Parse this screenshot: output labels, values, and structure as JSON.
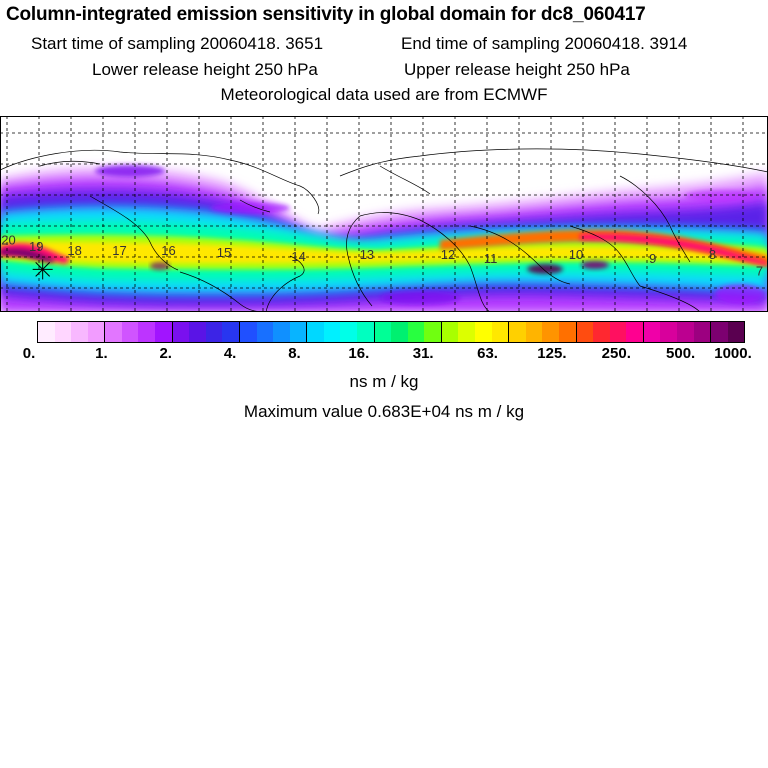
{
  "header": {
    "title": "Column-integrated emission sensitivity in global domain for dc8_060417",
    "start_label": "Start time of sampling 20060418.  3651",
    "end_label": "End time of sampling 20060418.  3914",
    "lower_label": "Lower release height  250 hPa",
    "upper_label": "Upper release height  250 hPa",
    "met_label": "Meteorological data used are from ECMWF"
  },
  "map": {
    "day_labels": [
      {
        "text": "20",
        "lon": -176,
        "lat": 21
      },
      {
        "text": "19",
        "lon": -163,
        "lat": 18
      },
      {
        "text": "18",
        "lon": -145,
        "lat": 16
      },
      {
        "text": "17",
        "lon": -124,
        "lat": 16
      },
      {
        "text": "16",
        "lon": -101,
        "lat": 16
      },
      {
        "text": "15",
        "lon": -75,
        "lat": 15
      },
      {
        "text": "14",
        "lon": -40,
        "lat": 13
      },
      {
        "text": "13",
        "lon": -8,
        "lat": 14
      },
      {
        "text": "12",
        "lon": 30,
        "lat": 14
      },
      {
        "text": "11",
        "lon": 50,
        "lat": 12
      },
      {
        "text": "10",
        "lon": 90,
        "lat": 14
      },
      {
        "text": "9",
        "lon": 126,
        "lat": 12
      },
      {
        "text": "8",
        "lon": 154,
        "lat": 14
      },
      {
        "text": "7",
        "lon": 176,
        "lat": 6
      }
    ],
    "release_marker": {
      "lon": -160,
      "lat": 9
    },
    "colors": {
      "grid": "#000000",
      "coast": "#000000"
    }
  },
  "colorbar": {
    "colors": [
      "#ffecff",
      "#ffd6ff",
      "#f8b8ff",
      "#f29cff",
      "#e276ff",
      "#d054ff",
      "#bd34ff",
      "#a114ff",
      "#7a10ef",
      "#5a14e6",
      "#3c24e6",
      "#2836f0",
      "#2050ff",
      "#1870ff",
      "#1090ff",
      "#08b4ff",
      "#00d8ff",
      "#00f0ff",
      "#00ffe8",
      "#00ffc0",
      "#00ff96",
      "#00f070",
      "#28ff40",
      "#70ff10",
      "#a8ff00",
      "#dcff00",
      "#ffff00",
      "#ffe800",
      "#ffd000",
      "#ffb400",
      "#ff9400",
      "#ff7000",
      "#ff4c10",
      "#ff2830",
      "#ff1060",
      "#ff0090",
      "#f000a8",
      "#d8009c",
      "#bc0090",
      "#9c0080",
      "#7c0070",
      "#5a0050"
    ],
    "ticks": [
      "0.",
      "1.",
      "2.",
      "4.",
      "8.",
      "16.",
      "31.",
      "63.",
      "125.",
      "250.",
      "500.",
      "1000."
    ],
    "units_label": "ns m / kg",
    "max_label": "Maximum value  0.683E+04 ns m / kg"
  }
}
